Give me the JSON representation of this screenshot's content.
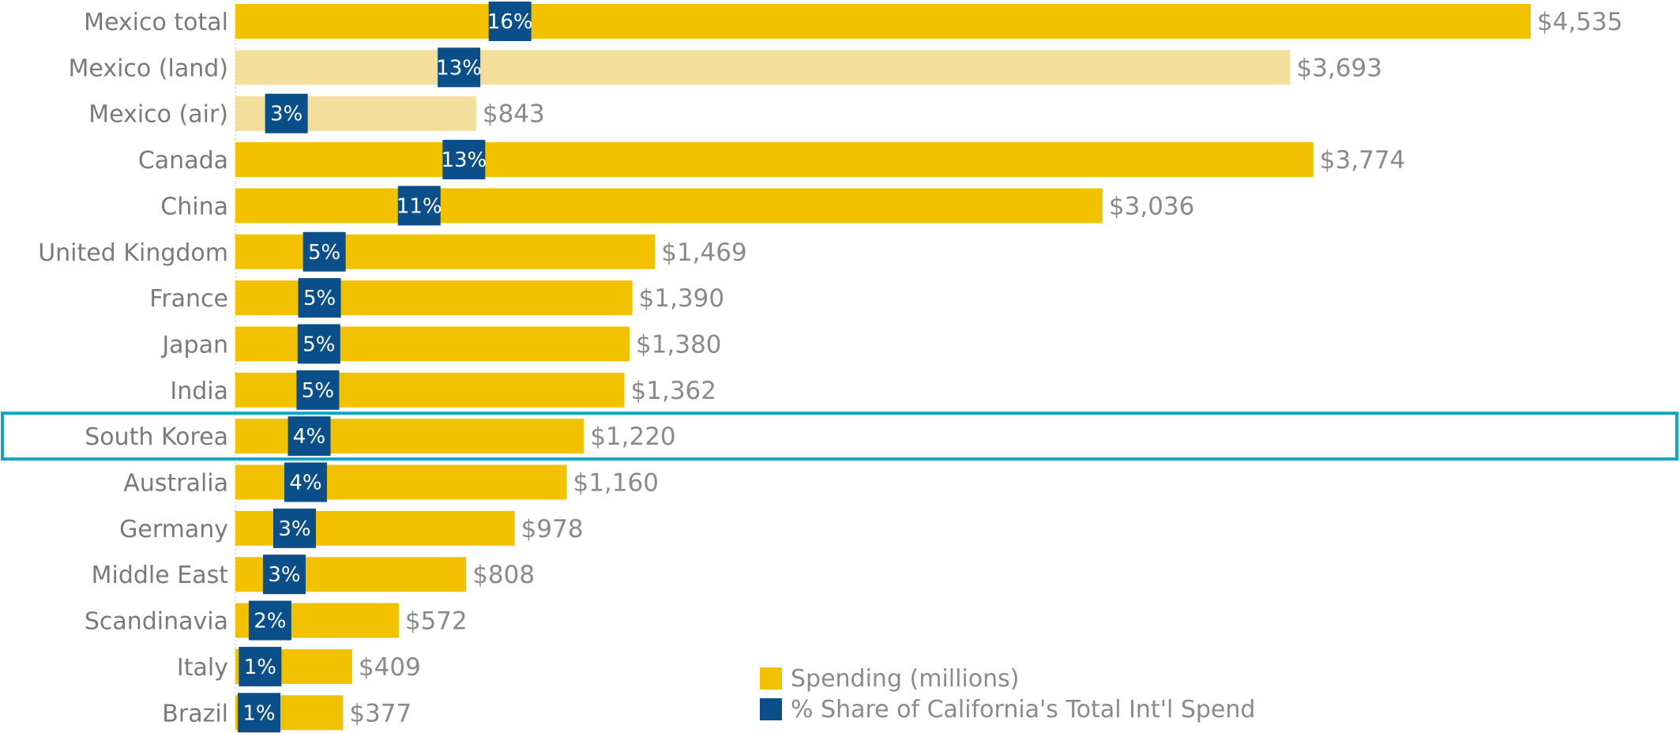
{
  "chart_data": {
    "type": "bar",
    "orientation": "horizontal",
    "categories": [
      "Mexico total",
      "Mexico (land)",
      "Mexico (air)",
      "Canada",
      "China",
      "United Kingdom",
      "France",
      "Japan",
      "India",
      "South Korea",
      "Australia",
      "Germany",
      "Middle East",
      "Scandinavia",
      "Italy",
      "Brazil"
    ],
    "series": [
      {
        "name": "Spending (millions)",
        "values": [
          4535,
          3693,
          843,
          3774,
          3036,
          1469,
          1390,
          1380,
          1362,
          1220,
          1160,
          978,
          808,
          572,
          409,
          377
        ],
        "value_labels": [
          "$4,535",
          "$3,693",
          "$843",
          "$3,774",
          "$3,036",
          "$1,469",
          "$1,390",
          "$1,380",
          "$1,362",
          "$1,220",
          "$1,160",
          "$978",
          "$808",
          "$572",
          "$409",
          "$377"
        ]
      },
      {
        "name": "% Share of California's Total Int'l Spend",
        "values": [
          16,
          13,
          3,
          13,
          11,
          5,
          5,
          5,
          5,
          4,
          4,
          3,
          3,
          2,
          1,
          1
        ],
        "value_labels": [
          "16%",
          "13%",
          "3%",
          "13%",
          "11%",
          "5%",
          "5%",
          "5%",
          "5%",
          "4%",
          "4%",
          "3%",
          "3%",
          "2%",
          "1%",
          "1%"
        ]
      }
    ],
    "light_categories": [
      "Mexico (land)",
      "Mexico (air)"
    ],
    "highlighted_category": "South Korea",
    "legend_position": "bottom-center",
    "colors": {
      "spending": "#f2c200",
      "spending_light": "#f3df9b",
      "share": "#0a4f8a",
      "highlight": "#11a6c2",
      "category_text": "#7a7a7a",
      "value_text": "#8a8a8a"
    }
  }
}
